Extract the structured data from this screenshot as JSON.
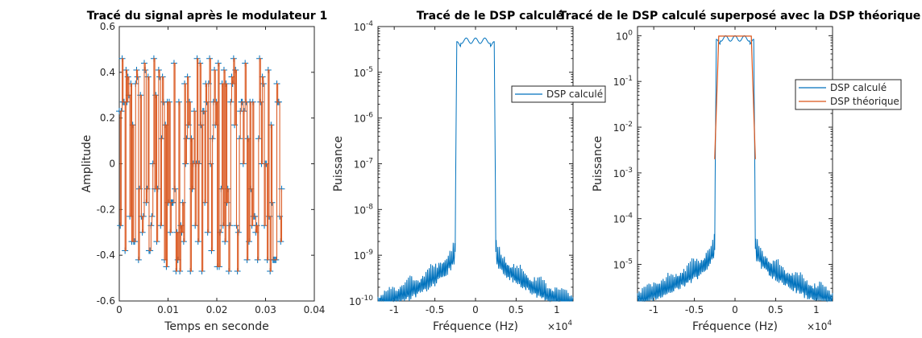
{
  "colors": {
    "blue": "#0072BD",
    "orange": "#D95319",
    "axis": "#262626"
  },
  "chart_data": [
    {
      "type": "line",
      "title": "Tracé du signal après le modulateur 1",
      "xlabel": "Temps en seconde",
      "ylabel": "Amplitude",
      "xlim": [
        0,
        0.04
      ],
      "ylim": [
        -0.6,
        0.6
      ],
      "xticks": [
        0,
        0.01,
        0.02,
        0.03,
        0.04
      ],
      "xtick_labels": [
        "0",
        "0.01",
        "0.02",
        "0.03",
        "0.04"
      ],
      "yticks": [
        -0.6,
        -0.4,
        -0.2,
        0,
        0.2,
        0.4,
        0.6
      ],
      "ytick_labels": [
        "-0.6",
        "-0.4",
        "-0.2",
        "0",
        "0.2",
        "0.4",
        "0.6"
      ],
      "series": [
        {
          "marker": "+",
          "color": "#0072BD"
        },
        {
          "marker": "none",
          "color": "#D95319"
        }
      ],
      "signal": {
        "t_end": 0.0333,
        "levels": [
          -0.47,
          -0.45,
          -0.42,
          -0.38,
          -0.34,
          -0.3,
          -0.27,
          -0.23,
          -0.17,
          -0.11,
          0.0,
          0.11,
          0.17,
          0.23,
          0.27,
          0.3,
          0.35,
          0.38,
          0.41,
          0.44,
          0.46
        ]
      },
      "grid": false
    },
    {
      "type": "line",
      "title": "Tracé de le DSP calculé",
      "xlabel": "Fréquence (Hz)",
      "ylabel": "Puissance",
      "x_exponent": "×10",
      "x_exponent_power": "4",
      "xlim": [
        -1.2,
        1.2
      ],
      "yscale": "log",
      "ylim_exp": [
        -10,
        -4
      ],
      "xticks": [
        -1,
        -0.5,
        0,
        0.5,
        1
      ],
      "xtick_labels": [
        "-1",
        "-0.5",
        "0",
        "0.5",
        "1"
      ],
      "yticks_exp": [
        -10,
        -9,
        -8,
        -7,
        -6,
        -5,
        -4
      ],
      "ytick_base": "10",
      "ytick_powers": [
        "-10",
        "-9",
        "-8",
        "-7",
        "-6",
        "-5",
        "-4"
      ],
      "legend": {
        "position": "outside-right",
        "entries": [
          "DSP calculé"
        ]
      },
      "dsp": {
        "peak_exp": -4.25,
        "band_edge": 0.25,
        "floor_exp": -9.8,
        "skirt_exp": -8.6
      },
      "series": [
        {
          "name": "DSP calculé",
          "color": "#0072BD"
        }
      ],
      "grid": false
    },
    {
      "type": "line",
      "title": "Tracé de le DSP calculé superposé avec la DSP théorique",
      "xlabel": "Fréquence (Hz)",
      "ylabel": "Puissance",
      "x_exponent": "×10",
      "x_exponent_power": "4",
      "xlim": [
        -1.2,
        1.2
      ],
      "yscale": "log",
      "ylim_exp": [
        -5.8,
        0.2
      ],
      "xticks": [
        -1,
        -0.5,
        0,
        0.5,
        1
      ],
      "xtick_labels": [
        "-1",
        "-0.5",
        "0",
        "0.5",
        "1"
      ],
      "yticks_exp": [
        -5,
        -4,
        -3,
        -2,
        -1,
        0
      ],
      "ytick_base": "10",
      "ytick_powers": [
        "-5",
        "-4",
        "-3",
        "-2",
        "-1",
        "0"
      ],
      "legend": {
        "position": "outside-right",
        "entries": [
          "DSP calculé",
          "DSP théorique"
        ]
      },
      "dsp": {
        "peak_exp": 0.0,
        "band_edge": 0.25,
        "floor_exp": -5.5,
        "skirt_exp": -4.3
      },
      "series": [
        {
          "name": "DSP calculé",
          "color": "#0072BD"
        },
        {
          "name": "DSP théorique",
          "color": "#D95319"
        }
      ],
      "grid": false
    }
  ]
}
